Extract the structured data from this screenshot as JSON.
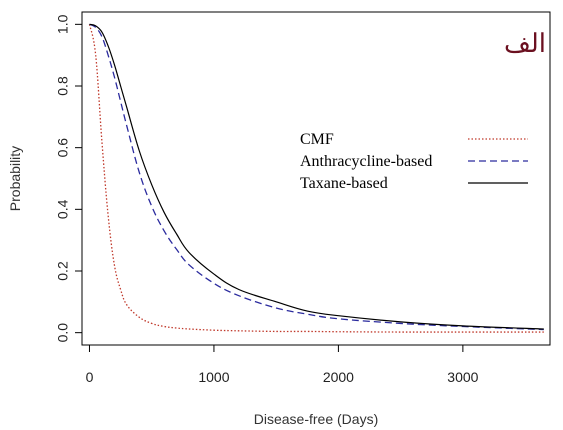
{
  "chart_data": {
    "type": "line",
    "title": "",
    "panel_label": "الف",
    "panel_label_color": "#6b1020",
    "xlabel": "Disease-free (Days)",
    "ylabel": "Probability",
    "xlim": [
      -60,
      3700
    ],
    "ylim": [
      -0.04,
      1.04
    ],
    "x_ticks": [
      0,
      1000,
      2000,
      3000
    ],
    "x_tick_labels": [
      "0",
      "1000",
      "2000",
      "3000"
    ],
    "y_ticks": [
      0.0,
      0.2,
      0.4,
      0.6,
      0.8,
      1.0
    ],
    "y_tick_labels": [
      "0.0",
      "0.2",
      "0.4",
      "0.6",
      "0.8",
      "1.0"
    ],
    "grid": false,
    "legend_position": "center-right",
    "x": [
      0,
      50,
      100,
      150,
      200,
      250,
      300,
      400,
      500,
      600,
      700,
      800,
      1000,
      1200,
      1500,
      1750,
      2000,
      2500,
      3000,
      3650
    ],
    "series": [
      {
        "name": "CMF",
        "color": "#c0392b",
        "dash": "dotted",
        "values": [
          1.0,
          0.9,
          0.62,
          0.38,
          0.22,
          0.14,
          0.09,
          0.05,
          0.03,
          0.02,
          0.015,
          0.012,
          0.008,
          0.006,
          0.004,
          0.004,
          0.003,
          0.002,
          0.002,
          0.002
        ]
      },
      {
        "name": "Anthracycline-based",
        "color": "#2b2b9e",
        "dash": "dashed",
        "values": [
          1.0,
          0.99,
          0.96,
          0.9,
          0.83,
          0.75,
          0.67,
          0.52,
          0.41,
          0.33,
          0.27,
          0.22,
          0.16,
          0.12,
          0.08,
          0.06,
          0.045,
          0.03,
          0.02,
          0.01
        ]
      },
      {
        "name": "Taxane-based",
        "color": "#000000",
        "dash": "solid",
        "values": [
          1.0,
          0.995,
          0.975,
          0.93,
          0.87,
          0.8,
          0.73,
          0.59,
          0.48,
          0.39,
          0.32,
          0.26,
          0.19,
          0.14,
          0.1,
          0.07,
          0.055,
          0.035,
          0.022,
          0.012
        ]
      }
    ]
  }
}
